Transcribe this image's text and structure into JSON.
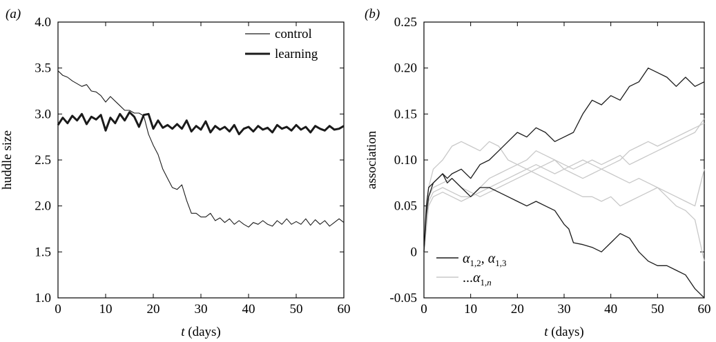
{
  "chart_data": [
    {
      "panel_label": "(a)",
      "type": "line",
      "xlabel_var": "t",
      "xlabel_unit": "(days)",
      "ylabel": "huddle size",
      "xlim": [
        0,
        60
      ],
      "ylim": [
        1.0,
        4.0
      ],
      "xticks": [
        "0",
        "10",
        "20",
        "30",
        "40",
        "50",
        "60"
      ],
      "yticks": [
        "1.0",
        "1.5",
        "2.0",
        "2.5",
        "3.0",
        "3.5",
        "4.0"
      ],
      "grid": false,
      "legend_position": "top-right",
      "series": [
        {
          "name": "control",
          "style": "thin",
          "x": [
            0,
            1,
            2,
            3,
            4,
            5,
            6,
            7,
            8,
            9,
            10,
            11,
            12,
            13,
            14,
            15,
            16,
            17,
            18,
            19,
            20,
            21,
            22,
            23,
            24,
            25,
            26,
            27,
            28,
            29,
            30,
            31,
            32,
            33,
            34,
            35,
            36,
            37,
            38,
            39,
            40,
            41,
            42,
            43,
            44,
            45,
            46,
            47,
            48,
            49,
            50,
            51,
            52,
            53,
            54,
            55,
            56,
            57,
            58,
            59,
            60
          ],
          "values": [
            3.47,
            3.42,
            3.4,
            3.36,
            3.33,
            3.3,
            3.32,
            3.25,
            3.24,
            3.2,
            3.13,
            3.19,
            3.14,
            3.09,
            3.04,
            3.04,
            3.01,
            3.01,
            2.98,
            2.78,
            2.66,
            2.56,
            2.4,
            2.3,
            2.2,
            2.18,
            2.23,
            2.06,
            1.92,
            1.92,
            1.88,
            1.88,
            1.92,
            1.84,
            1.87,
            1.82,
            1.86,
            1.8,
            1.84,
            1.8,
            1.77,
            1.82,
            1.8,
            1.84,
            1.8,
            1.78,
            1.84,
            1.8,
            1.86,
            1.8,
            1.83,
            1.8,
            1.86,
            1.79,
            1.85,
            1.8,
            1.84,
            1.78,
            1.82,
            1.86,
            1.82
          ]
        },
        {
          "name": "learning",
          "style": "thick",
          "x": [
            0,
            1,
            2,
            3,
            4,
            5,
            6,
            7,
            8,
            9,
            10,
            11,
            12,
            13,
            14,
            15,
            16,
            17,
            18,
            19,
            20,
            21,
            22,
            23,
            24,
            25,
            26,
            27,
            28,
            29,
            30,
            31,
            32,
            33,
            34,
            35,
            36,
            37,
            38,
            39,
            40,
            41,
            42,
            43,
            44,
            45,
            46,
            47,
            48,
            49,
            50,
            51,
            52,
            53,
            54,
            55,
            56,
            57,
            58,
            59,
            60
          ],
          "values": [
            2.88,
            2.96,
            2.9,
            2.98,
            2.93,
            3.0,
            2.89,
            2.97,
            2.94,
            2.99,
            2.82,
            2.96,
            2.9,
            3.0,
            2.93,
            3.02,
            2.97,
            2.86,
            2.99,
            3.0,
            2.84,
            2.93,
            2.85,
            2.88,
            2.84,
            2.89,
            2.84,
            2.93,
            2.81,
            2.87,
            2.83,
            2.92,
            2.8,
            2.87,
            2.83,
            2.86,
            2.81,
            2.88,
            2.78,
            2.84,
            2.86,
            2.81,
            2.87,
            2.83,
            2.85,
            2.8,
            2.88,
            2.84,
            2.86,
            2.82,
            2.88,
            2.83,
            2.86,
            2.8,
            2.87,
            2.84,
            2.82,
            2.87,
            2.83,
            2.84,
            2.87
          ]
        }
      ]
    },
    {
      "panel_label": "(b)",
      "type": "line",
      "xlabel_var": "t",
      "xlabel_unit": "(days)",
      "ylabel": "association",
      "xlim": [
        0,
        60
      ],
      "ylim": [
        -0.05,
        0.25
      ],
      "xticks": [
        "0",
        "10",
        "20",
        "30",
        "40",
        "50",
        "60"
      ],
      "yticks": [
        "-0.05",
        "0",
        "0.05",
        "0.10",
        "0.15",
        "0.20",
        "0.25"
      ],
      "grid": false,
      "legend_position": "bottom-left",
      "legend": [
        {
          "label_parts": [
            "α",
            "1,2",
            ", ",
            "α",
            "1,3"
          ],
          "color": "#1a1a1a"
        },
        {
          "label_parts": [
            "...",
            "α",
            "1,",
            "n"
          ],
          "color": "#c8c8c8"
        }
      ],
      "series": [
        {
          "group": "dark",
          "color": "#1a1a1a",
          "x": [
            0,
            0.5,
            1,
            2,
            3,
            4,
            5,
            6,
            8,
            10,
            12,
            14,
            16,
            18,
            20,
            22,
            24,
            26,
            28,
            30,
            32,
            34,
            36,
            38,
            40,
            42,
            44,
            46,
            48,
            50,
            52,
            54,
            56,
            58,
            60
          ],
          "values": [
            0,
            0.04,
            0.06,
            0.075,
            0.08,
            0.085,
            0.08,
            0.085,
            0.09,
            0.08,
            0.095,
            0.1,
            0.11,
            0.12,
            0.13,
            0.125,
            0.135,
            0.13,
            0.12,
            0.125,
            0.13,
            0.15,
            0.165,
            0.16,
            0.17,
            0.165,
            0.18,
            0.185,
            0.2,
            0.195,
            0.19,
            0.18,
            0.19,
            0.18,
            0.185
          ]
        },
        {
          "group": "dark",
          "color": "#1a1a1a",
          "x": [
            0,
            0.5,
            1,
            2,
            3,
            4,
            5,
            6,
            8,
            10,
            12,
            14,
            16,
            18,
            20,
            22,
            24,
            26,
            28,
            30,
            31,
            32,
            34,
            36,
            38,
            40,
            42,
            44,
            46,
            48,
            50,
            52,
            54,
            56,
            58,
            59,
            60
          ],
          "values": [
            0,
            0.05,
            0.07,
            0.075,
            0.08,
            0.085,
            0.075,
            0.08,
            0.07,
            0.06,
            0.07,
            0.07,
            0.065,
            0.06,
            0.055,
            0.05,
            0.055,
            0.05,
            0.045,
            0.03,
            0.025,
            0.01,
            0.008,
            0.005,
            0.0,
            0.01,
            0.02,
            0.015,
            0.0,
            -0.01,
            -0.015,
            -0.015,
            -0.02,
            -0.025,
            -0.04,
            -0.045,
            -0.05
          ]
        },
        {
          "group": "light",
          "color": "#c8c8c8",
          "x": [
            0,
            1,
            2,
            4,
            6,
            8,
            10,
            12,
            14,
            16,
            18,
            20,
            22,
            24,
            26,
            28,
            30,
            32,
            34,
            36,
            38,
            40,
            42,
            44,
            46,
            48,
            50,
            52,
            54,
            56,
            58,
            60
          ],
          "values": [
            0,
            0.07,
            0.09,
            0.1,
            0.115,
            0.12,
            0.115,
            0.11,
            0.12,
            0.115,
            0.1,
            0.095,
            0.09,
            0.085,
            0.08,
            0.075,
            0.07,
            0.065,
            0.06,
            0.06,
            0.055,
            0.06,
            0.05,
            0.055,
            0.06,
            0.065,
            0.07,
            0.06,
            0.05,
            0.045,
            0.035,
            -0.01
          ]
        },
        {
          "group": "light",
          "color": "#c8c8c8",
          "x": [
            0,
            1,
            2,
            4,
            6,
            8,
            10,
            12,
            14,
            16,
            18,
            20,
            22,
            24,
            26,
            28,
            30,
            32,
            34,
            36,
            38,
            40,
            42,
            44,
            46,
            48,
            50,
            52,
            54,
            56,
            58,
            60
          ],
          "values": [
            0,
            0.06,
            0.07,
            0.075,
            0.08,
            0.07,
            0.065,
            0.06,
            0.065,
            0.07,
            0.075,
            0.08,
            0.085,
            0.09,
            0.095,
            0.1,
            0.095,
            0.09,
            0.095,
            0.1,
            0.095,
            0.1,
            0.105,
            0.095,
            0.1,
            0.105,
            0.11,
            0.115,
            0.12,
            0.125,
            0.13,
            0.145
          ]
        },
        {
          "group": "light",
          "color": "#c8c8c8",
          "x": [
            0,
            1,
            2,
            4,
            6,
            8,
            10,
            12,
            14,
            16,
            18,
            20,
            22,
            24,
            26,
            28,
            30,
            32,
            34,
            36,
            38,
            40,
            42,
            44,
            46,
            48,
            50,
            52,
            54,
            56,
            58,
            60
          ],
          "values": [
            0,
            0.055,
            0.065,
            0.07,
            0.065,
            0.06,
            0.06,
            0.065,
            0.07,
            0.075,
            0.08,
            0.085,
            0.09,
            0.095,
            0.09,
            0.085,
            0.09,
            0.095,
            0.1,
            0.095,
            0.09,
            0.085,
            0.08,
            0.075,
            0.08,
            0.075,
            0.07,
            0.065,
            0.06,
            0.055,
            0.05,
            0.09
          ]
        },
        {
          "group": "light",
          "color": "#c8c8c8",
          "x": [
            0,
            1,
            2,
            4,
            6,
            8,
            10,
            12,
            14,
            16,
            18,
            20,
            22,
            24,
            26,
            28,
            30,
            32,
            34,
            36,
            38,
            40,
            42,
            44,
            46,
            48,
            50,
            52,
            54,
            56,
            58,
            60
          ],
          "values": [
            0,
            0.05,
            0.06,
            0.065,
            0.06,
            0.055,
            0.06,
            0.07,
            0.08,
            0.085,
            0.09,
            0.095,
            0.1,
            0.11,
            0.105,
            0.1,
            0.09,
            0.085,
            0.08,
            0.085,
            0.09,
            0.095,
            0.1,
            0.11,
            0.115,
            0.12,
            0.115,
            0.12,
            0.125,
            0.13,
            0.135,
            0.14
          ]
        }
      ]
    }
  ]
}
